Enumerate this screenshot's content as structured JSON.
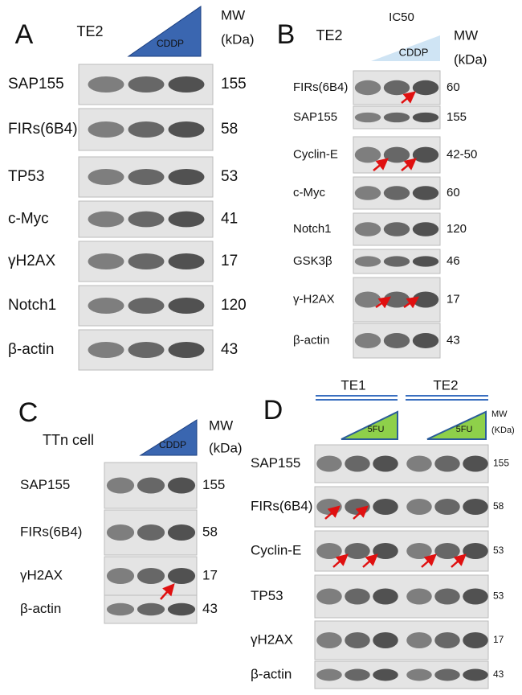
{
  "panels": [
    {
      "label": "A",
      "cell": "TE2",
      "treatment": "CDDP",
      "mw_header": [
        "MW",
        "(kDa)"
      ],
      "rows": [
        {
          "protein": "SAP155",
          "mw": "155"
        },
        {
          "protein": "FIRs(6B4)",
          "mw": "58"
        },
        {
          "protein": "TP53",
          "mw": "53"
        },
        {
          "protein": "c-Myc",
          "mw": "41"
        },
        {
          "protein": "γH2AX",
          "mw": "17"
        },
        {
          "protein": "Notch1",
          "mw": "120"
        },
        {
          "protein": "β-actin",
          "mw": "43"
        }
      ]
    },
    {
      "label": "B",
      "cell": "TE2",
      "treatment": "CDDP",
      "note": "IC50",
      "mw_header": [
        "MW",
        "(kDa)"
      ],
      "rows": [
        {
          "protein": "FIRs(6B4)",
          "mw": "60"
        },
        {
          "protein": "SAP155",
          "mw": "155"
        },
        {
          "protein": "Cyclin-E",
          "mw": "42-50"
        },
        {
          "protein": "c-Myc",
          "mw": "60"
        },
        {
          "protein": "Notch1",
          "mw": "120"
        },
        {
          "protein": "GSK3β",
          "mw": "46"
        },
        {
          "protein": "γ-H2AX",
          "mw": "17"
        },
        {
          "protein": "β-actin",
          "mw": "43"
        }
      ]
    },
    {
      "label": "C",
      "cell": "TTn cell",
      "treatment": "CDDP",
      "mw_header": [
        "MW",
        "(kDa)"
      ],
      "rows": [
        {
          "protein": "SAP155",
          "mw": "155"
        },
        {
          "protein": "FIRs(6B4)",
          "mw": "58"
        },
        {
          "protein": "γH2AX",
          "mw": "17"
        },
        {
          "protein": "β-actin",
          "mw": "43"
        }
      ]
    },
    {
      "label": "D",
      "groups": [
        "TE1",
        "TE2"
      ],
      "treatment": "5FU",
      "mw_header": [
        "MW",
        "(KDa)"
      ],
      "rows": [
        {
          "protein": "SAP155",
          "mw": "155"
        },
        {
          "protein": "FIRs(6B4)",
          "mw": "58"
        },
        {
          "protein": "Cyclin-E",
          "mw": "53"
        },
        {
          "protein": "TP53",
          "mw": "53"
        },
        {
          "protein": "γH2AX",
          "mw": "17"
        },
        {
          "protein": "β-actin",
          "mw": "43"
        }
      ]
    }
  ]
}
